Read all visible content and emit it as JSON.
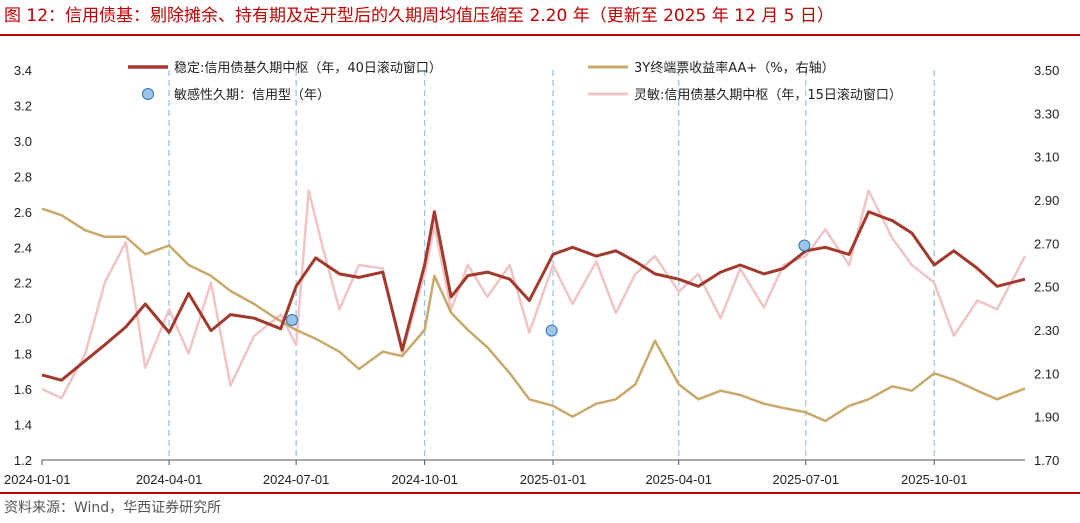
{
  "header": {
    "title": "图 12：信用债基：剔除摊余、持有期及定开型后的久期周均值压缩至 2.20 年（更新至 2025 年 12 月 5 日）"
  },
  "footer": {
    "source": "资料来源：Wind，华西证券研究所"
  },
  "colors": {
    "accent": "#c00000",
    "stable": "#a1392d",
    "yield": "#c8a96a",
    "sensitive": "#f0c4c4",
    "points": "#9dc3e6",
    "points_edge": "#2e75b6",
    "gridline": "#9dc3e6"
  },
  "chart_data": {
    "type": "line",
    "x_axis": {
      "type": "date",
      "range": [
        "2024-01-01",
        "2025-12-05"
      ],
      "ticks": [
        "2024-01-01",
        "2024-04-01",
        "2024-07-01",
        "2024-10-01",
        "2025-01-01",
        "2025-04-01",
        "2025-07-01",
        "2025-10-01"
      ]
    },
    "y_left": {
      "min": 1.2,
      "max": 3.4,
      "ticks": [
        "1.2",
        "1.4",
        "1.6",
        "1.8",
        "2.0",
        "2.2",
        "2.4",
        "2.6",
        "2.8",
        "3.0",
        "3.2",
        "3.4"
      ]
    },
    "y_right": {
      "min": 1.7,
      "max": 3.5,
      "ticks": [
        "1.70",
        "1.90",
        "2.10",
        "2.30",
        "2.50",
        "2.70",
        "2.90",
        "3.10",
        "3.30",
        "3.50"
      ]
    },
    "vertical_gridlines": "dashed at each date tick",
    "legend_placement": "top, two columns",
    "series": [
      {
        "name": "稳定:信用债基久期中枢（年，40日滚动窗口）",
        "axis": "left",
        "style": "line",
        "points": [
          [
            "2024-01-01",
            1.68
          ],
          [
            "2024-01-15",
            1.65
          ],
          [
            "2024-02-01",
            1.76
          ],
          [
            "2024-02-15",
            1.85
          ],
          [
            "2024-03-01",
            1.95
          ],
          [
            "2024-03-15",
            2.08
          ],
          [
            "2024-04-01",
            1.92
          ],
          [
            "2024-04-15",
            2.14
          ],
          [
            "2024-05-01",
            1.93
          ],
          [
            "2024-05-15",
            2.02
          ],
          [
            "2024-06-01",
            2.0
          ],
          [
            "2024-06-20",
            1.94
          ],
          [
            "2024-07-01",
            2.18
          ],
          [
            "2024-07-15",
            2.34
          ],
          [
            "2024-08-01",
            2.25
          ],
          [
            "2024-08-15",
            2.23
          ],
          [
            "2024-09-01",
            2.26
          ],
          [
            "2024-09-15",
            1.82
          ],
          [
            "2024-10-01",
            2.3
          ],
          [
            "2024-10-08",
            2.6
          ],
          [
            "2024-10-20",
            2.12
          ],
          [
            "2024-11-01",
            2.24
          ],
          [
            "2024-11-15",
            2.26
          ],
          [
            "2024-12-01",
            2.22
          ],
          [
            "2024-12-15",
            2.1
          ],
          [
            "2025-01-01",
            2.36
          ],
          [
            "2025-01-15",
            2.4
          ],
          [
            "2025-02-01",
            2.35
          ],
          [
            "2025-02-15",
            2.38
          ],
          [
            "2025-03-01",
            2.32
          ],
          [
            "2025-03-15",
            2.25
          ],
          [
            "2025-04-01",
            2.22
          ],
          [
            "2025-04-15",
            2.18
          ],
          [
            "2025-05-01",
            2.26
          ],
          [
            "2025-05-15",
            2.3
          ],
          [
            "2025-06-01",
            2.25
          ],
          [
            "2025-06-15",
            2.28
          ],
          [
            "2025-07-01",
            2.38
          ],
          [
            "2025-07-15",
            2.4
          ],
          [
            "2025-08-01",
            2.36
          ],
          [
            "2025-08-15",
            2.6
          ],
          [
            "2025-09-01",
            2.55
          ],
          [
            "2025-09-15",
            2.48
          ],
          [
            "2025-10-01",
            2.3
          ],
          [
            "2025-10-15",
            2.38
          ],
          [
            "2025-11-01",
            2.28
          ],
          [
            "2025-11-15",
            2.18
          ],
          [
            "2025-12-05",
            2.22
          ]
        ]
      },
      {
        "name": "敏感性久期：信用型（年）",
        "axis": "left",
        "style": "points",
        "points": [
          [
            "2024-06-28",
            1.99
          ],
          [
            "2024-12-31",
            1.93
          ],
          [
            "2025-06-30",
            2.41
          ]
        ]
      },
      {
        "name": "3Y终端票收益率AA+（%，右轴）",
        "axis": "right",
        "style": "line",
        "points": [
          [
            "2024-01-01",
            2.86
          ],
          [
            "2024-01-15",
            2.83
          ],
          [
            "2024-02-01",
            2.76
          ],
          [
            "2024-02-15",
            2.73
          ],
          [
            "2024-03-01",
            2.73
          ],
          [
            "2024-03-15",
            2.65
          ],
          [
            "2024-04-01",
            2.69
          ],
          [
            "2024-04-15",
            2.6
          ],
          [
            "2024-05-01",
            2.55
          ],
          [
            "2024-05-15",
            2.48
          ],
          [
            "2024-06-01",
            2.42
          ],
          [
            "2024-06-15",
            2.36
          ],
          [
            "2024-07-01",
            2.3
          ],
          [
            "2024-07-15",
            2.26
          ],
          [
            "2024-08-01",
            2.2
          ],
          [
            "2024-08-15",
            2.12
          ],
          [
            "2024-09-01",
            2.2
          ],
          [
            "2024-09-15",
            2.18
          ],
          [
            "2024-10-01",
            2.3
          ],
          [
            "2024-10-08",
            2.55
          ],
          [
            "2024-10-20",
            2.38
          ],
          [
            "2024-11-01",
            2.3
          ],
          [
            "2024-11-15",
            2.22
          ],
          [
            "2024-12-01",
            2.1
          ],
          [
            "2024-12-15",
            1.98
          ],
          [
            "2025-01-01",
            1.95
          ],
          [
            "2025-01-15",
            1.9
          ],
          [
            "2025-02-01",
            1.96
          ],
          [
            "2025-02-15",
            1.98
          ],
          [
            "2025-03-01",
            2.05
          ],
          [
            "2025-03-15",
            2.25
          ],
          [
            "2025-04-01",
            2.05
          ],
          [
            "2025-04-15",
            1.98
          ],
          [
            "2025-05-01",
            2.02
          ],
          [
            "2025-05-15",
            2.0
          ],
          [
            "2025-06-01",
            1.96
          ],
          [
            "2025-06-15",
            1.94
          ],
          [
            "2025-07-01",
            1.92
          ],
          [
            "2025-07-15",
            1.88
          ],
          [
            "2025-08-01",
            1.95
          ],
          [
            "2025-08-15",
            1.98
          ],
          [
            "2025-09-01",
            2.04
          ],
          [
            "2025-09-15",
            2.02
          ],
          [
            "2025-10-01",
            2.1
          ],
          [
            "2025-10-15",
            2.07
          ],
          [
            "2025-11-01",
            2.02
          ],
          [
            "2025-11-15",
            1.98
          ],
          [
            "2025-12-05",
            2.03
          ]
        ]
      },
      {
        "name": "灵敏:信用债基久期中枢（年，15日滚动窗口）",
        "axis": "left",
        "style": "line",
        "points": [
          [
            "2024-01-01",
            1.6
          ],
          [
            "2024-01-15",
            1.55
          ],
          [
            "2024-02-01",
            1.8
          ],
          [
            "2024-02-15",
            2.2
          ],
          [
            "2024-03-01",
            2.43
          ],
          [
            "2024-03-15",
            1.72
          ],
          [
            "2024-04-01",
            2.05
          ],
          [
            "2024-04-15",
            1.8
          ],
          [
            "2024-05-01",
            2.2
          ],
          [
            "2024-05-15",
            1.62
          ],
          [
            "2024-06-01",
            1.9
          ],
          [
            "2024-06-20",
            2.02
          ],
          [
            "2024-07-01",
            1.85
          ],
          [
            "2024-07-10",
            2.72
          ],
          [
            "2024-07-20",
            2.4
          ],
          [
            "2024-08-01",
            2.05
          ],
          [
            "2024-08-15",
            2.3
          ],
          [
            "2024-09-01",
            2.28
          ],
          [
            "2024-09-15",
            1.8
          ],
          [
            "2024-10-01",
            2.25
          ],
          [
            "2024-10-08",
            2.52
          ],
          [
            "2024-10-20",
            2.05
          ],
          [
            "2024-11-01",
            2.3
          ],
          [
            "2024-11-15",
            2.12
          ],
          [
            "2024-12-01",
            2.3
          ],
          [
            "2024-12-15",
            1.92
          ],
          [
            "2025-01-01",
            2.3
          ],
          [
            "2025-01-15",
            2.08
          ],
          [
            "2025-02-01",
            2.32
          ],
          [
            "2025-02-15",
            2.03
          ],
          [
            "2025-03-01",
            2.25
          ],
          [
            "2025-03-15",
            2.35
          ],
          [
            "2025-04-01",
            2.15
          ],
          [
            "2025-04-15",
            2.25
          ],
          [
            "2025-05-01",
            2.0
          ],
          [
            "2025-05-15",
            2.28
          ],
          [
            "2025-06-01",
            2.06
          ],
          [
            "2025-06-15",
            2.3
          ],
          [
            "2025-07-01",
            2.35
          ],
          [
            "2025-07-15",
            2.5
          ],
          [
            "2025-08-01",
            2.3
          ],
          [
            "2025-08-15",
            2.72
          ],
          [
            "2025-09-01",
            2.45
          ],
          [
            "2025-09-15",
            2.3
          ],
          [
            "2025-10-01",
            2.2
          ],
          [
            "2025-10-15",
            1.9
          ],
          [
            "2025-11-01",
            2.1
          ],
          [
            "2025-11-15",
            2.05
          ],
          [
            "2025-12-05",
            2.35
          ]
        ]
      }
    ]
  }
}
